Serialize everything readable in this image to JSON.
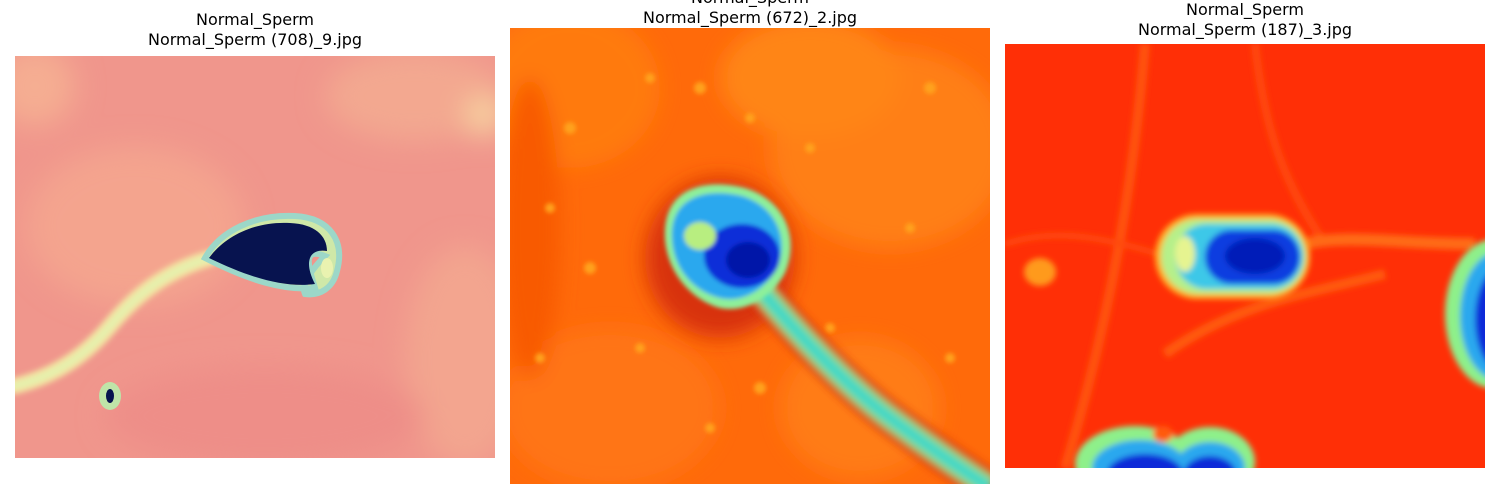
{
  "panels": [
    {
      "class_label": "Normal_Sperm",
      "filename": "Normal_Sperm (708)_9.jpg",
      "colormap": "pastel-salmon",
      "subject": "sperm cell with dark head and faint tail"
    },
    {
      "class_label": "Normal_Sperm",
      "filename": "Normal_Sperm (672)_2.jpg",
      "colormap": "jet-orange",
      "subject": "sperm cell with blue head and long cyan tail"
    },
    {
      "class_label": "Normal_Sperm",
      "filename": "Normal_Sperm (187)_3.jpg",
      "colormap": "jet-red",
      "subject": "sperm cell head with neighbouring cells at edges"
    }
  ]
}
